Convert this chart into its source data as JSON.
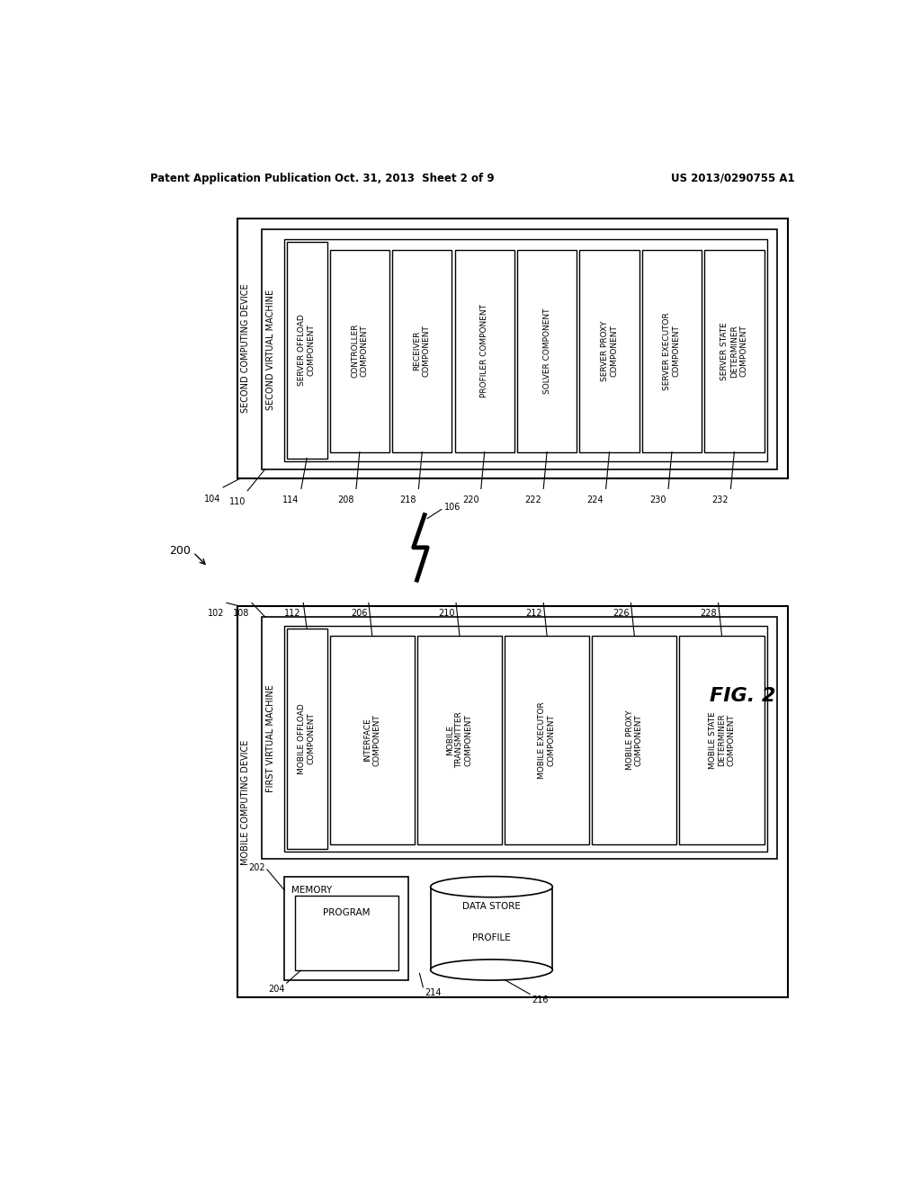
{
  "bg_color": "#ffffff",
  "header_left": "Patent Application Publication",
  "header_mid": "Oct. 31, 2013  Sheet 2 of 9",
  "header_right": "US 2013/0290755 A1",
  "fig_label": "FIG. 2",
  "server_device_label": "SECOND COMPUTING DEVICE",
  "server_vm_label": "SECOND VIRTUAL MACHINE",
  "server_offload_label": "SERVER OFFLOAD\nCOMPONENT",
  "server_offload_ref": "114",
  "server_device_ref": "104",
  "server_vm_ref": "110",
  "server_inner_components": [
    {
      "label": "CONTROLLER\nCOMPONENT",
      "ref": "208"
    },
    {
      "label": "RECEIVER\nCOMPONENT",
      "ref": "218"
    },
    {
      "label": "PROFILER COMPONENT",
      "ref": "220"
    },
    {
      "label": "SOLVER COMPONENT",
      "ref": "222"
    },
    {
      "label": "SERVER PROXY\nCOMPONENT",
      "ref": "224"
    },
    {
      "label": "SERVER EXECUTOR\nCOMPONENT",
      "ref": "230"
    },
    {
      "label": "SERVER STATE\nDETERMINER\nCOMPONENT",
      "ref": "232"
    }
  ],
  "mobile_device_label": "MOBILE COMPUTING DEVICE",
  "mobile_vm_label": "FIRST VIRTUAL MACHINE",
  "mobile_offload_label": "MOBILE OFFLOAD\nCOMPONENT",
  "mobile_offload_ref": "112",
  "mobile_device_ref": "102",
  "mobile_vm_ref": "108",
  "mobile_inner_components": [
    {
      "label": "INTERFACE\nCOMPONENT",
      "ref": "206"
    },
    {
      "label": "MOBILE\nTRANSMITTER\nCOMPONENT",
      "ref": "210"
    },
    {
      "label": "MOBILE EXECUTOR\nCOMPONENT",
      "ref": "212"
    },
    {
      "label": "MOBILE PROXY\nCOMPONENT",
      "ref": "226"
    },
    {
      "label": "MOBILE STATE\nDETERMINER\nCOMPONENT",
      "ref": "228"
    }
  ],
  "memory_label": "MEMORY",
  "memory_ref": "202",
  "program_label": "PROGRAM",
  "program_ref": "204",
  "program_ref2": "214",
  "datastore_label": "DATA STORE",
  "profile_label": "PROFILE",
  "datastore_ref": "216",
  "wireless_ref": "106",
  "arrow_200": "200"
}
